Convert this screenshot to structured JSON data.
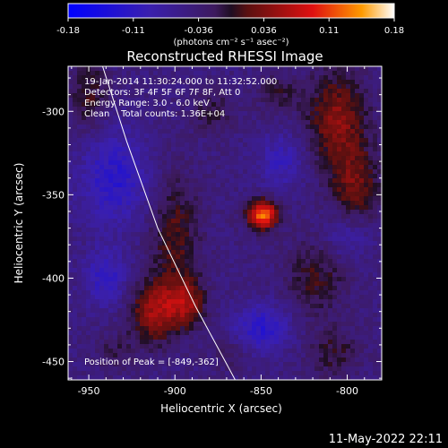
{
  "colorbar": {
    "ticks": [
      "-0.18",
      "-0.11",
      "-0.036",
      "0.036",
      "0.11",
      "0.18"
    ],
    "units": "(photons cm⁻² s⁻¹ asec⁻²)"
  },
  "header": {
    "lines": [
      "19-Jan-2014 11:30:24.000 to 11:32:52.000",
      "Detectors: 3F 4F 5F 6F 7F 8F, Att 0",
      "Energy Range: 3.0 - 6.0 keV",
      "Clean    Total counts: 1.36E+04"
    ]
  },
  "peak_label": "Position of Peak = [-849,-362]",
  "footer_date": "11-May-2022 22:11",
  "chart_data": {
    "type": "heatmap",
    "title": "Reconstructed RHESSI Image",
    "xlabel": "Heliocentric X (arcsec)",
    "ylabel": "Heliocentric Y (arcsec)",
    "xlim": [
      -962,
      -780
    ],
    "ylim": [
      -461,
      -273
    ],
    "xticks": [
      -950,
      -900,
      -850,
      -800
    ],
    "yticks": [
      -300,
      -350,
      -400,
      -450
    ],
    "xtick_labels": [
      "-950",
      "-900",
      "-850",
      "-800"
    ],
    "ytick_labels": [
      "-300",
      "-350",
      "-400",
      "-450"
    ],
    "color_range": [
      -0.18,
      0.18
    ],
    "peak": {
      "x": -849,
      "y": -362
    },
    "limb_points": [
      [
        -942,
        -273
      ],
      [
        -928,
        -318
      ],
      [
        -910,
        -370
      ],
      [
        -888,
        -417
      ],
      [
        -865,
        -461
      ]
    ],
    "blobs": [
      {
        "x": -849,
        "y": -362,
        "sx": 6,
        "sy": 6,
        "a": 0.18
      },
      {
        "x": -806,
        "y": -305,
        "sx": 12,
        "sy": 20,
        "a": 0.085
      },
      {
        "x": -795,
        "y": -345,
        "sx": 10,
        "sy": 16,
        "a": 0.07
      },
      {
        "x": -818,
        "y": -400,
        "sx": 12,
        "sy": 16,
        "a": 0.05
      },
      {
        "x": -808,
        "y": -445,
        "sx": 10,
        "sy": 10,
        "a": 0.045
      },
      {
        "x": -900,
        "y": -375,
        "sx": 10,
        "sy": 25,
        "a": 0.06
      },
      {
        "x": -912,
        "y": -420,
        "sx": 10,
        "sy": 13,
        "a": 0.095
      },
      {
        "x": -893,
        "y": -415,
        "sx": 8,
        "sy": 10,
        "a": 0.08
      },
      {
        "x": -950,
        "y": -290,
        "sx": 8,
        "sy": 15,
        "a": 0.05
      },
      {
        "x": -840,
        "y": -290,
        "sx": 8,
        "sy": 8,
        "a": 0.04
      },
      {
        "x": -935,
        "y": -445,
        "sx": 8,
        "sy": 8,
        "a": 0.03
      },
      {
        "x": -868,
        "y": -445,
        "sx": 7,
        "sy": 7,
        "a": 0.03
      },
      {
        "x": -878,
        "y": -300,
        "sx": 9,
        "sy": 9,
        "a": 0.035
      },
      {
        "x": -850,
        "y": -430,
        "sx": 12,
        "sy": 10,
        "a": -0.07
      },
      {
        "x": -935,
        "y": -340,
        "sx": 14,
        "sy": 20,
        "a": -0.07
      },
      {
        "x": -838,
        "y": -330,
        "sx": 10,
        "sy": 12,
        "a": -0.05
      },
      {
        "x": -800,
        "y": -375,
        "sx": 10,
        "sy": 10,
        "a": -0.04
      },
      {
        "x": -940,
        "y": -400,
        "sx": 9,
        "sy": 12,
        "a": -0.06
      }
    ]
  }
}
